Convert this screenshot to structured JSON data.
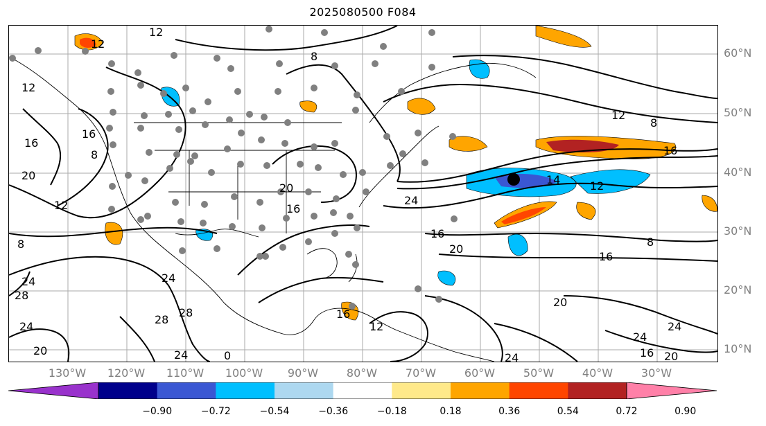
{
  "title": "2025080500 F084",
  "latitude_labels": [
    "60°N",
    "50°N",
    "40°N",
    "30°N",
    "20°N",
    "10°N"
  ],
  "longitude_labels": [
    "130°W",
    "120°W",
    "110°W",
    "100°W",
    "90°W",
    "80°W",
    "70°W",
    "60°W",
    "50°W",
    "40°W",
    "30°W"
  ],
  "contour_labels": [
    "12",
    "12",
    "8",
    "12",
    "16",
    "16",
    "8",
    "20",
    "12",
    "8",
    "24",
    "20",
    "16",
    "20",
    "24",
    "12",
    "16",
    "8",
    "16",
    "24",
    "28",
    "24",
    "20",
    "24",
    "28",
    "28",
    "16",
    "20",
    "24",
    "16",
    "12",
    "12",
    "14",
    "24",
    "20",
    "24",
    "16",
    "0",
    "8"
  ],
  "colorbar": {
    "ticks": [
      "−0.90",
      "−0.72",
      "−0.54",
      "−0.36",
      "−0.18",
      "0.18",
      "0.36",
      "0.54",
      "0.72",
      "0.90"
    ],
    "colors": [
      "#9932cc",
      "#00008b",
      "#3a57d3",
      "#00bfff",
      "#add8f0",
      "#ffffff",
      "#ffe98a",
      "#ffa500",
      "#ff4500",
      "#b22222",
      "#ff80a8"
    ]
  }
}
